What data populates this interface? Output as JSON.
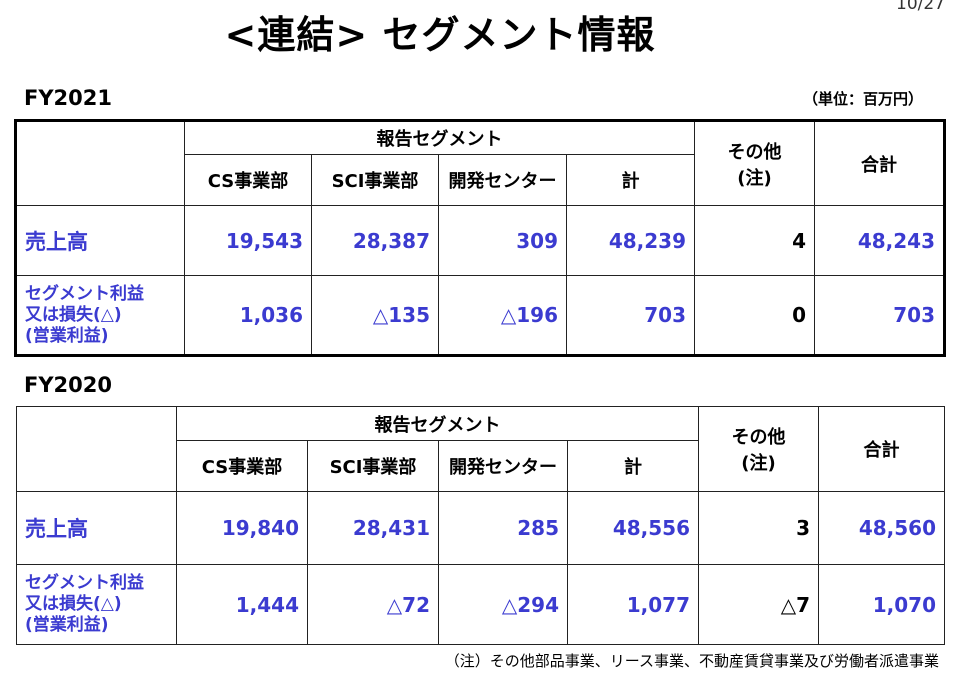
{
  "page_number": "10/27",
  "title": "<連結> セグメント情報",
  "unit": "（単位：百万円）",
  "header": {
    "reporting_segment": "報告セグメント",
    "cs": "CS事業部",
    "sci": "SCI事業部",
    "dev": "開発センター",
    "subtotal": "計",
    "other_line1": "その他",
    "other_line2": "(注)",
    "total": "合計"
  },
  "row_labels": {
    "sales": "売上高",
    "profit_line1": "セグメント利益",
    "profit_line2": "又は損失(△)",
    "profit_line3": "(営業利益)"
  },
  "fy2021": {
    "label": "FY2021",
    "sales": [
      "19,543",
      "28,387",
      "309",
      "48,239",
      "4",
      "48,243"
    ],
    "profit": [
      "1,036",
      "△135",
      "△196",
      "703",
      "0",
      "703"
    ]
  },
  "fy2020": {
    "label": "FY2020",
    "sales": [
      "19,840",
      "28,431",
      "285",
      "48,556",
      "3",
      "48,560"
    ],
    "profit": [
      "1,444",
      "△72",
      "△294",
      "1,077",
      "△7",
      "1,070"
    ]
  },
  "footnote": "（注）その他部品事業、リース事業、不動産賃貸事業及び労働者派遣事業"
}
